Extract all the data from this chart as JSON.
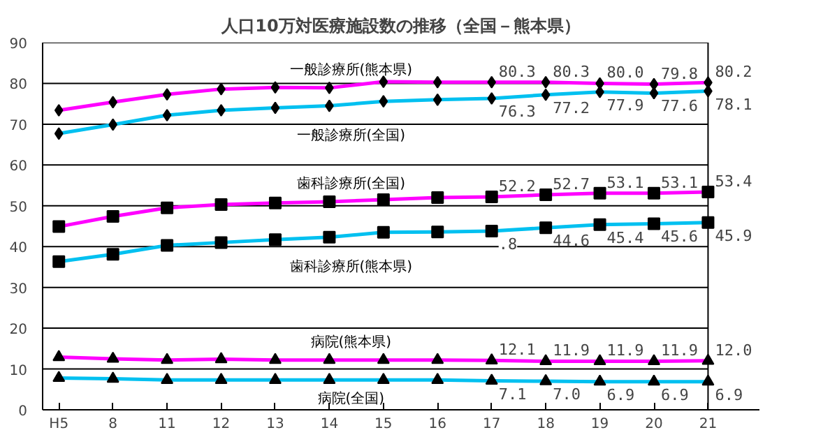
{
  "chart_data": {
    "type": "line",
    "title": "人口10万対医療施設数の推移（全国－熊本県）",
    "categories": [
      "H5",
      "8",
      "11",
      "12",
      "13",
      "14",
      "15",
      "16",
      "17",
      "18",
      "19",
      "20",
      "21"
    ],
    "ylim": [
      0,
      90
    ],
    "yticks": [
      0,
      10,
      20,
      30,
      40,
      50,
      60,
      70,
      80,
      90
    ],
    "grid": "y",
    "annotations": [
      {
        "text": ".8",
        "x": "17",
        "y": 43.8
      }
    ],
    "series": [
      {
        "name": "一般診療所(熊本県)",
        "color": "#ff00ff",
        "marker": "diamond",
        "values": [
          73.4,
          75.4,
          77.3,
          78.6,
          79.0,
          78.9,
          80.4,
          80.3,
          80.3,
          80.3,
          80.0,
          79.8,
          80.2
        ],
        "value_labels": [
          null,
          null,
          null,
          null,
          null,
          null,
          null,
          null,
          "80.3",
          "80.3",
          "80.0",
          "79.8",
          "80.2"
        ]
      },
      {
        "name": "一般診療所(全国)",
        "color": "#00c0f0",
        "marker": "diamond",
        "values": [
          67.7,
          69.9,
          72.2,
          73.4,
          74.0,
          74.5,
          75.6,
          76.0,
          76.3,
          77.2,
          77.9,
          77.6,
          78.1
        ],
        "value_labels": [
          null,
          null,
          null,
          null,
          null,
          null,
          null,
          null,
          "76.3",
          "77.2",
          "77.9",
          "77.6",
          "78.1"
        ]
      },
      {
        "name": "歯科診療所(全国)",
        "color": "#ff00ff",
        "marker": "square",
        "values": [
          44.9,
          47.4,
          49.5,
          50.3,
          50.7,
          51.0,
          51.5,
          52.0,
          52.2,
          52.7,
          53.1,
          53.1,
          53.4
        ],
        "value_labels": [
          null,
          null,
          null,
          null,
          null,
          null,
          null,
          null,
          "52.2",
          "52.7",
          "53.1",
          "53.1",
          "53.4"
        ]
      },
      {
        "name": "歯科診療所(熊本県)",
        "color": "#00c0f0",
        "marker": "square",
        "values": [
          36.3,
          38.1,
          40.3,
          41.0,
          41.7,
          42.3,
          43.5,
          43.6,
          43.8,
          44.6,
          45.4,
          45.6,
          45.9
        ],
        "value_labels": [
          null,
          null,
          null,
          null,
          null,
          null,
          null,
          null,
          null,
          "44.6",
          "45.4",
          "45.6",
          "45.9"
        ]
      },
      {
        "name": "病院(熊本県)",
        "color": "#ff00ff",
        "marker": "triangle",
        "values": [
          12.9,
          12.5,
          12.2,
          12.4,
          12.2,
          12.2,
          12.2,
          12.2,
          12.1,
          11.9,
          11.9,
          11.9,
          12.0
        ],
        "value_labels": [
          null,
          null,
          null,
          null,
          null,
          null,
          null,
          null,
          "12.1",
          "11.9",
          "11.9",
          "11.9",
          "12.0"
        ]
      },
      {
        "name": "病院(全国)",
        "color": "#00c0f0",
        "marker": "triangle",
        "values": [
          7.8,
          7.6,
          7.3,
          7.3,
          7.3,
          7.3,
          7.3,
          7.3,
          7.1,
          7.0,
          6.9,
          6.9,
          6.9
        ],
        "value_labels": [
          null,
          null,
          null,
          null,
          null,
          null,
          null,
          null,
          "7.1",
          "7.0",
          "6.9",
          "6.9",
          "6.9"
        ]
      }
    ]
  }
}
